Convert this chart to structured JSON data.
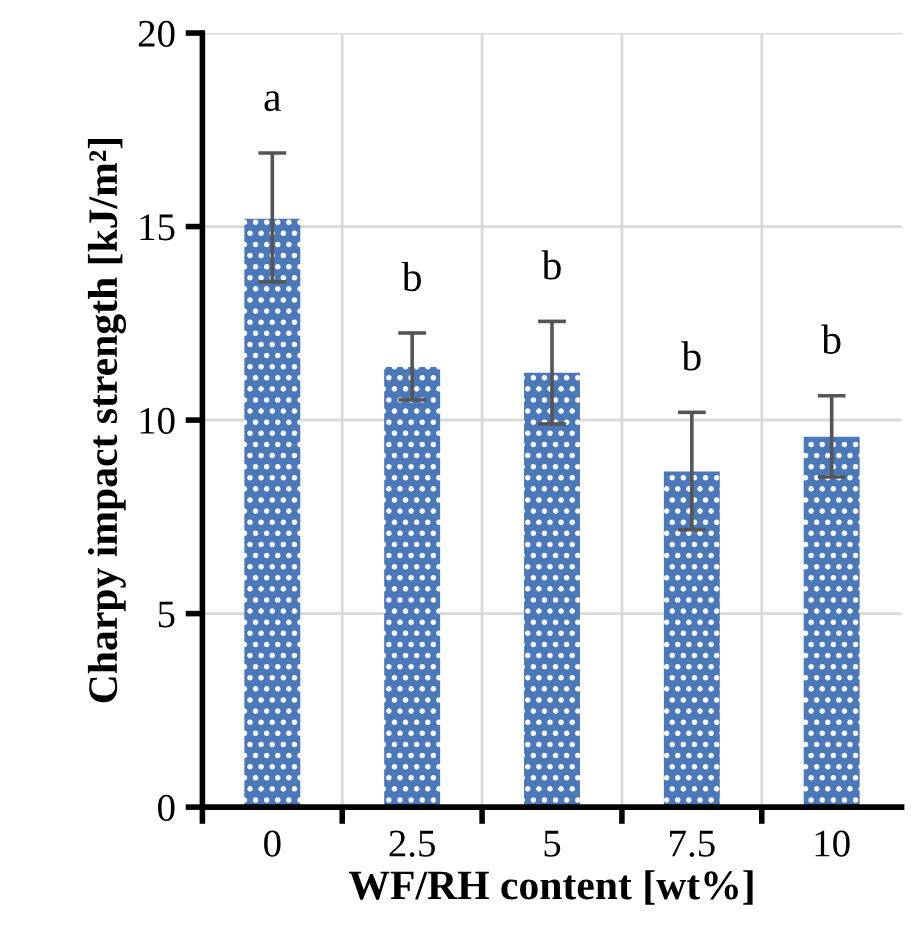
{
  "chart_data": {
    "type": "bar",
    "xlabel": "WF/RH content [wt%]",
    "ylabel": "Charpy impact strength [kJ/m²]",
    "categories": [
      "0",
      "2.5",
      "5",
      "7.5",
      "10"
    ],
    "values": [
      15.2,
      11.37,
      11.22,
      8.67,
      9.57
    ],
    "errors": [
      [
        13.57,
        16.9
      ],
      [
        10.52,
        12.25
      ],
      [
        9.9,
        12.55
      ],
      [
        7.17,
        10.2
      ],
      [
        8.53,
        10.63
      ]
    ],
    "color": "#4a78b8",
    "ylim": [
      0,
      20
    ],
    "yticks": [
      0,
      5,
      10,
      15,
      20
    ],
    "grid": true,
    "annotations": [
      "a",
      "b",
      "b",
      "b",
      "b"
    ]
  }
}
